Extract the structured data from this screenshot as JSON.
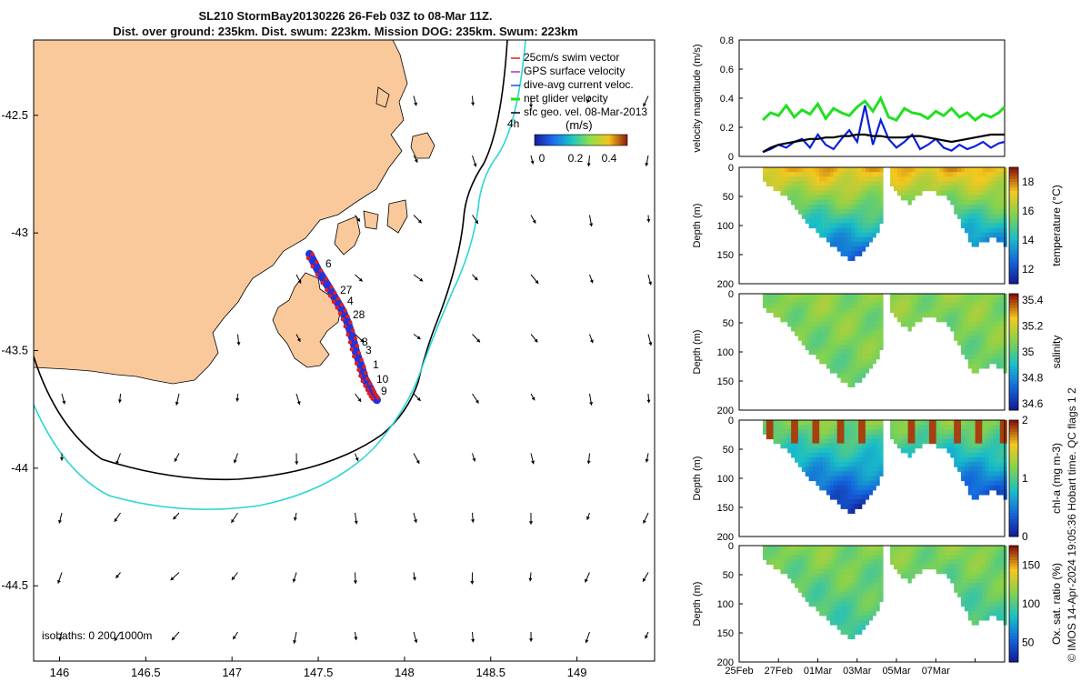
{
  "title_line1": "SL210 StormBay20130226 26-Feb 03Z to 08-Mar 11Z.",
  "title_line2": "Dist. over ground: 235km. Dist. swum: 223km. Mission DOG: 235km. Swum: 223km",
  "credit": "© IMOS 14-Apr-2024 19:05:36 Hobart time. QC flags 1  2",
  "colors": {
    "land": "#f9c89b",
    "track": "#2233dd",
    "track_dots": "#e21c1c",
    "isobath_200": "#000000",
    "isobath_1000": "#2bd6d6",
    "net": "#22e022",
    "dive": "#0a20dd",
    "sfc": "#000000"
  },
  "map": {
    "isobaths_label": "isobaths: 0   200  1000m",
    "time_marker": "4h",
    "day_labels": [
      "6",
      "27",
      "4",
      "28",
      "8",
      "3",
      "1",
      "10",
      "9"
    ],
    "legend": [
      "25cm/s swim vector",
      "GPS surface velocity",
      "dive-avg current veloc.",
      "net glider velocity",
      "sfc geo. vel. 08-Mar-2013"
    ],
    "colorbar_unit": "(m/s)",
    "colorbar_ticks": [
      "0",
      "0.2",
      "0.4"
    ]
  },
  "chart_data": [
    {
      "type": "scatter",
      "name": "glider track map",
      "xlim": [
        145.85,
        149.45
      ],
      "ylim": [
        -44.82,
        -42.18
      ],
      "xticks": [
        146,
        146.5,
        147,
        147.5,
        148,
        148.5,
        149
      ],
      "yticks": [
        -42.5,
        -43,
        -43.5,
        -44,
        -44.5
      ],
      "xtick_labels": [
        "146",
        "146.5",
        "147",
        "147.5",
        "148",
        "148.5",
        "149"
      ],
      "ytick_labels": [
        "-42.5",
        "-43",
        "-43.5",
        "-44",
        "-44.5"
      ],
      "track": {
        "lon": [
          147.45,
          147.5,
          147.56,
          147.6,
          147.64,
          147.67,
          147.7,
          147.72,
          147.75,
          147.77,
          147.8,
          147.82,
          147.84
        ],
        "lat": [
          -43.09,
          -43.16,
          -43.23,
          -43.28,
          -43.33,
          -43.38,
          -43.45,
          -43.51,
          -43.57,
          -43.62,
          -43.66,
          -43.69,
          -43.71
        ]
      }
    },
    {
      "type": "line",
      "name": "velocity",
      "ylabel": "velocity magnitude (m/s)",
      "xlim": [
        0,
        13.5
      ],
      "ylim": [
        0,
        0.8
      ],
      "yticks": [
        0,
        0.2,
        0.4,
        0.6,
        0.8
      ],
      "ytick_labels": [
        "0",
        "0.2",
        "0.4",
        "0.6",
        "0.8"
      ],
      "series": [
        {
          "key": "net",
          "x": [
            1.2,
            1.6,
            2.0,
            2.4,
            2.8,
            3.2,
            3.6,
            4.0,
            4.4,
            4.8,
            5.2,
            5.6,
            6.0,
            6.4,
            6.8,
            7.2,
            7.6,
            8.0,
            8.4,
            8.8,
            9.2,
            9.6,
            10.0,
            10.4,
            10.8,
            11.2,
            11.6,
            12.0,
            12.4,
            12.8,
            13.2,
            13.5
          ],
          "values": [
            0.25,
            0.3,
            0.28,
            0.35,
            0.27,
            0.32,
            0.29,
            0.36,
            0.26,
            0.33,
            0.3,
            0.28,
            0.34,
            0.38,
            0.31,
            0.4,
            0.27,
            0.25,
            0.33,
            0.3,
            0.29,
            0.26,
            0.31,
            0.28,
            0.33,
            0.27,
            0.3,
            0.25,
            0.29,
            0.27,
            0.3,
            0.34
          ]
        },
        {
          "key": "dive",
          "x": [
            1.2,
            1.6,
            2.0,
            2.4,
            2.8,
            3.2,
            3.6,
            4.0,
            4.4,
            4.8,
            5.2,
            5.6,
            6.0,
            6.4,
            6.8,
            7.2,
            7.6,
            8.0,
            8.4,
            8.8,
            9.2,
            9.6,
            10.0,
            10.4,
            10.8,
            11.2,
            11.6,
            12.0,
            12.4,
            12.8,
            13.2,
            13.5
          ],
          "values": [
            0.03,
            0.05,
            0.08,
            0.06,
            0.1,
            0.12,
            0.06,
            0.15,
            0.08,
            0.05,
            0.12,
            0.18,
            0.1,
            0.35,
            0.08,
            0.25,
            0.12,
            0.06,
            0.1,
            0.15,
            0.05,
            0.08,
            0.12,
            0.06,
            0.04,
            0.08,
            0.05,
            0.07,
            0.1,
            0.06,
            0.09,
            0.1
          ]
        },
        {
          "key": "sfc",
          "x": [
            1.2,
            1.6,
            2.0,
            2.4,
            2.8,
            3.2,
            3.6,
            4.0,
            4.4,
            4.8,
            5.2,
            5.6,
            6.0,
            6.4,
            6.8,
            7.2,
            7.6,
            8.0,
            8.4,
            8.8,
            9.2,
            9.6,
            10.0,
            10.4,
            10.8,
            11.2,
            11.6,
            12.0,
            12.4,
            12.8,
            13.2,
            13.5
          ],
          "values": [
            0.03,
            0.06,
            0.08,
            0.09,
            0.1,
            0.11,
            0.12,
            0.12,
            0.13,
            0.13,
            0.14,
            0.14,
            0.15,
            0.15,
            0.14,
            0.14,
            0.13,
            0.13,
            0.13,
            0.14,
            0.14,
            0.13,
            0.12,
            0.11,
            0.1,
            0.11,
            0.12,
            0.13,
            0.14,
            0.15,
            0.15,
            0.15
          ]
        }
      ]
    },
    {
      "type": "heatmap",
      "name": "temperature",
      "ylabel": "Depth (m)",
      "colorbar_label": "temperature (°C)",
      "ylim": [
        0,
        200
      ],
      "yticks": [
        0,
        50,
        100,
        150,
        200
      ],
      "ytick_labels": [
        "0",
        "50",
        "100",
        "150",
        "200"
      ],
      "clim": [
        11,
        19
      ],
      "cticks": [
        12,
        14,
        16,
        18
      ],
      "ctick_labels": [
        "12",
        "14",
        "16",
        "18"
      ],
      "surface_value": 17.5,
      "bottom_value": 12.2
    },
    {
      "type": "heatmap",
      "name": "salinity",
      "ylabel": "Depth (m)",
      "colorbar_label": "salinity",
      "ylim": [
        0,
        200
      ],
      "yticks": [
        0,
        50,
        100,
        150,
        200
      ],
      "ytick_labels": [
        "0",
        "50",
        "100",
        "150",
        "200"
      ],
      "clim": [
        34.55,
        35.45
      ],
      "cticks": [
        34.6,
        34.8,
        35,
        35.2,
        35.4
      ],
      "ctick_labels": [
        "34.6",
        "34.8",
        "35",
        "35.2",
        "35.4"
      ],
      "surface_value": 35.1,
      "bottom_value": 35.05
    },
    {
      "type": "heatmap",
      "name": "chl-a",
      "ylabel": "Depth (m)",
      "colorbar_label": "chl-a (mg m-3)",
      "ylim": [
        0,
        200
      ],
      "yticks": [
        0,
        50,
        100,
        150,
        200
      ],
      "ytick_labels": [
        "0",
        "50",
        "100",
        "150",
        "200"
      ],
      "clim": [
        0,
        2
      ],
      "cticks": [
        0,
        1,
        2
      ],
      "ctick_labels": [
        "0",
        "1",
        "2"
      ],
      "surface_value": 1.2,
      "bottom_value": 0.1
    },
    {
      "type": "heatmap",
      "name": "oxygen saturation",
      "ylabel": "Depth (m)",
      "colorbar_label": "Ox. sat. ratio (%)",
      "ylim": [
        0,
        200
      ],
      "yticks": [
        0,
        50,
        100,
        150,
        200
      ],
      "ytick_labels": [
        "0",
        "50",
        "100",
        "150",
        "200"
      ],
      "clim": [
        25,
        175
      ],
      "cticks": [
        50,
        100,
        150
      ],
      "ctick_labels": [
        "50",
        "100",
        "150"
      ],
      "surface_value": 115,
      "bottom_value": 95
    },
    {
      "type": "line",
      "name": "time axis",
      "xlim": [
        0,
        13.5
      ],
      "xticks": [
        0,
        2,
        4,
        6,
        8,
        10,
        12
      ],
      "xtick_labels": [
        "25Feb",
        "27Feb",
        "01Mar",
        "03Mar",
        "05Mar",
        "07Mar",
        ""
      ],
      "deploy_start": 1.2,
      "gap": [
        7.3,
        7.5
      ],
      "bottom_depth": {
        "x": [
          1.2,
          2.5,
          3.5,
          4.6,
          5.6,
          6.5,
          7.3,
          7.5,
          8.5,
          9.4,
          10.5,
          11.8,
          12.8,
          13.5
        ],
        "values": [
          20,
          50,
          95,
          128,
          160,
          132,
          85,
          20,
          60,
          35,
          45,
          135,
          115,
          130
        ]
      }
    }
  ]
}
